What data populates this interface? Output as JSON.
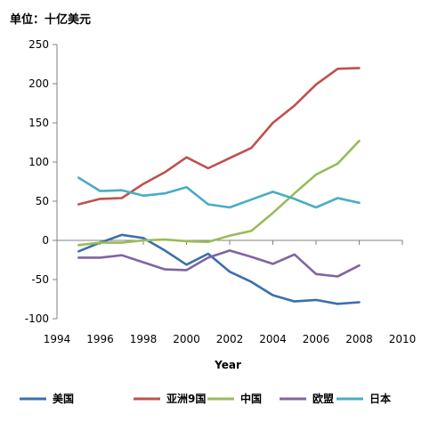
{
  "chart_data": {
    "type": "line",
    "unit_label": "单位：十亿美元",
    "xlabel": "Year",
    "ylabel": "",
    "xlim": [
      1994,
      2010
    ],
    "ylim": [
      -100,
      250
    ],
    "x_ticks": [
      1994,
      1996,
      1998,
      2000,
      2002,
      2004,
      2006,
      2008,
      2010
    ],
    "y_ticks": [
      -100,
      -50,
      0,
      50,
      100,
      150,
      200,
      250
    ],
    "grid": false,
    "legend_position": "bottom",
    "x": [
      1995,
      1996,
      1997,
      1998,
      1999,
      2000,
      2001,
      2002,
      2003,
      2004,
      2005,
      2006,
      2007,
      2008
    ],
    "series": [
      {
        "name": "美国",
        "color": "#3A6FAE",
        "values": [
          -14,
          -3,
          7,
          3,
          -13,
          -31,
          -17,
          -40,
          -53,
          -70,
          -78,
          -76,
          -81,
          -79
        ]
      },
      {
        "name": "亚洲9国",
        "color": "#C0504D",
        "values": [
          46,
          53,
          54,
          72,
          87,
          106,
          92,
          105,
          118,
          150,
          172,
          199,
          219,
          220
        ]
      },
      {
        "name": "中国",
        "color": "#9BBB59",
        "values": [
          -6,
          -3,
          -3,
          0,
          1,
          -1,
          -2,
          6,
          12,
          35,
          60,
          84,
          98,
          127
        ]
      },
      {
        "name": "欧盟",
        "color": "#8064A2",
        "values": [
          -22,
          -22,
          -19,
          -28,
          -37,
          -38,
          -22,
          -13,
          -21,
          -30,
          -18,
          -43,
          -46,
          -32
        ]
      },
      {
        "name": "日本",
        "color": "#4BACC6",
        "values": [
          80,
          63,
          64,
          57,
          60,
          68,
          46,
          42,
          52,
          62,
          53,
          42,
          54,
          48
        ]
      }
    ]
  }
}
